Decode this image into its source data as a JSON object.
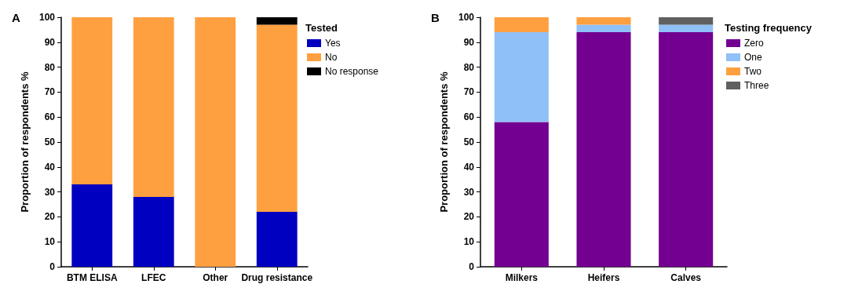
{
  "chart_data": [
    {
      "type": "bar",
      "title": "A",
      "stacked": true,
      "ylabel": "Proportion of respondents %",
      "legend_title": "Tested",
      "legend": "top right",
      "categories": [
        "BTM ELISA",
        "LFEC",
        "Other",
        "Drug resistance"
      ],
      "ylim": [
        0,
        100
      ],
      "yticks": [
        0,
        10,
        20,
        30,
        40,
        50,
        60,
        70,
        80,
        90,
        100
      ],
      "grid": false,
      "series": [
        {
          "name": "Yes",
          "color": "#0000c0",
          "values": [
            33,
            28,
            0,
            22
          ]
        },
        {
          "name": "No",
          "color": "#ffa040",
          "values": [
            67,
            72,
            100,
            75
          ]
        },
        {
          "name": "No response",
          "color": "#000000",
          "values": [
            0,
            0,
            0,
            3
          ]
        }
      ]
    },
    {
      "type": "bar",
      "title": "B",
      "stacked": true,
      "ylabel": "Proportion of respondents %",
      "legend_title": "Testing frequency",
      "legend": "top right",
      "categories": [
        "Milkers",
        "Heifers",
        "Calves"
      ],
      "ylim": [
        0,
        100
      ],
      "yticks": [
        0,
        10,
        20,
        30,
        40,
        50,
        60,
        70,
        80,
        90,
        100
      ],
      "grid": false,
      "series": [
        {
          "name": "Zero",
          "color": "#730090",
          "values": [
            58,
            94,
            94
          ]
        },
        {
          "name": "One",
          "color": "#90c0f8",
          "values": [
            36,
            3,
            3
          ]
        },
        {
          "name": "Two",
          "color": "#ffa040",
          "values": [
            6,
            3,
            0
          ]
        },
        {
          "name": "Three",
          "color": "#606060",
          "values": [
            0,
            0,
            3
          ]
        }
      ]
    }
  ]
}
